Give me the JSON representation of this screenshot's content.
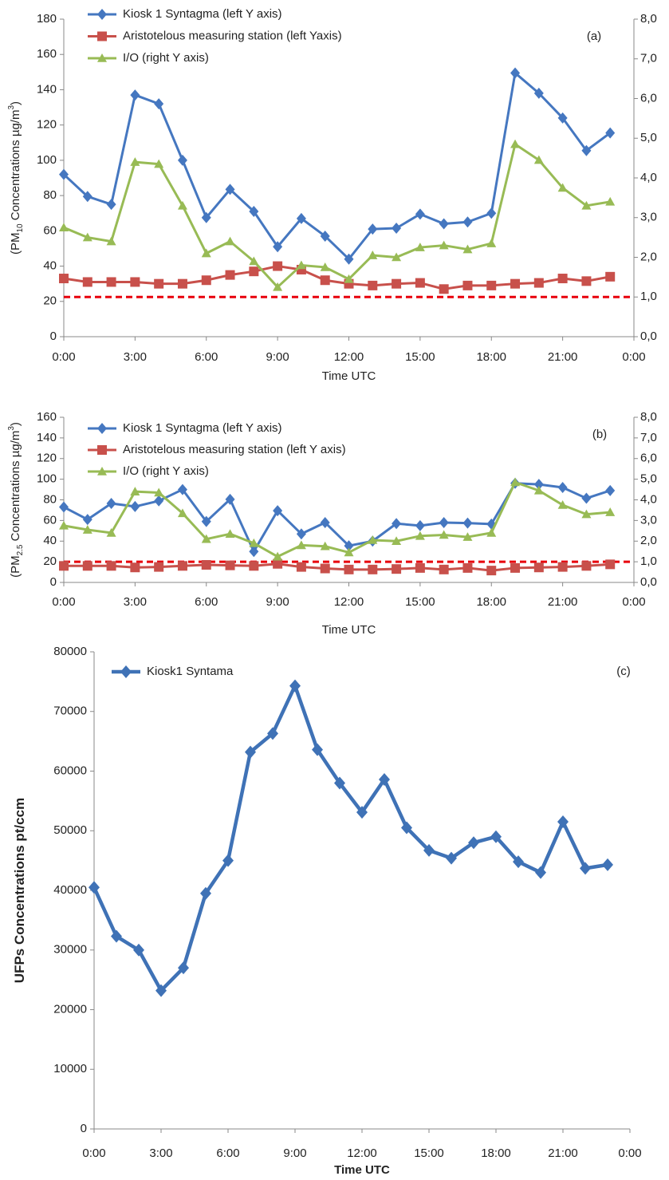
{
  "chart_data": [
    {
      "type": "line",
      "panel_label": "(a)",
      "xlabel": "Time UTC",
      "ylabel": [
        "(PM",
        "10",
        " Concentrations µg/m",
        "3",
        ")"
      ],
      "x": [
        0,
        1,
        2,
        3,
        4,
        5,
        6,
        7,
        8,
        9,
        10,
        11,
        12,
        13,
        14,
        15,
        16,
        17,
        18,
        19,
        20,
        21,
        22,
        23
      ],
      "xlim": [
        0,
        24
      ],
      "xticks": [
        {
          "value": 0,
          "label": "0:00"
        },
        {
          "value": 3,
          "label": "3:00"
        },
        {
          "value": 6,
          "label": "6:00"
        },
        {
          "value": 9,
          "label": "9:00"
        },
        {
          "value": 12,
          "label": "12:00"
        },
        {
          "value": 15,
          "label": "15:00"
        },
        {
          "value": 18,
          "label": "18:00"
        },
        {
          "value": 21,
          "label": "21:00"
        },
        {
          "value": 24,
          "label": "0:00"
        }
      ],
      "ylim": [
        0,
        180
      ],
      "yticks": [
        0,
        20,
        40,
        60,
        80,
        100,
        120,
        140,
        160,
        180
      ],
      "y2lim": [
        0,
        8
      ],
      "y2ticks": [
        {
          "value": 0,
          "label": "0,0"
        },
        {
          "value": 1,
          "label": "1,0"
        },
        {
          "value": 2,
          "label": "2,0"
        },
        {
          "value": 3,
          "label": "3,0"
        },
        {
          "value": 4,
          "label": "4,0"
        },
        {
          "value": 5,
          "label": "5,0"
        },
        {
          "value": 6,
          "label": "6,0"
        },
        {
          "value": 7,
          "label": "7,0"
        },
        {
          "value": 8,
          "label": "8,0"
        }
      ],
      "reference_line": {
        "axis": "y2",
        "value": 1,
        "color": "#e8000b"
      },
      "series": [
        {
          "name": "Kiosk 1 Syntagma (left Y axis)",
          "color": "#4577c0",
          "marker": "diamond",
          "values": [
            92,
            79.5,
            75,
            137,
            132,
            100,
            67.5,
            83.5,
            71,
            51,
            67,
            57,
            44,
            61,
            61.5,
            69.5,
            64,
            65,
            70,
            149.5,
            138,
            124,
            105.5,
            115.5
          ]
        },
        {
          "name": "Aristotelous measuring station (left Yaxis)",
          "color": "#c8504b",
          "marker": "square",
          "values": [
            33,
            31,
            31,
            31,
            30,
            30,
            32,
            35,
            37,
            40,
            38,
            32,
            30,
            29,
            30,
            30.5,
            27,
            29,
            29,
            30,
            30.5,
            33,
            31.5,
            34
          ]
        },
        {
          "name": "I/O (right Y axis)",
          "color": "#98bb55",
          "marker": "triangle",
          "axis": "y2",
          "values": [
            2.75,
            2.5,
            2.4,
            4.4,
            4.35,
            3.3,
            2.1,
            2.4,
            1.9,
            1.25,
            1.8,
            1.75,
            1.45,
            2.05,
            2.0,
            2.25,
            2.3,
            2.2,
            2.35,
            4.85,
            4.45,
            3.75,
            3.3,
            3.4
          ]
        }
      ]
    },
    {
      "type": "line",
      "panel_label": "(b)",
      "xlabel": "Time UTC",
      "ylabel": [
        "(PM",
        "2.5",
        " Concentrations µg/m",
        "3",
        ")"
      ],
      "x": [
        0,
        1,
        2,
        3,
        4,
        5,
        6,
        7,
        8,
        9,
        10,
        11,
        12,
        13,
        14,
        15,
        16,
        17,
        18,
        19,
        20,
        21,
        22,
        23
      ],
      "xlim": [
        0,
        24
      ],
      "xticks": [
        {
          "value": 0,
          "label": "0:00"
        },
        {
          "value": 3,
          "label": "3:00"
        },
        {
          "value": 6,
          "label": "6:00"
        },
        {
          "value": 9,
          "label": "9:00"
        },
        {
          "value": 12,
          "label": "12:00"
        },
        {
          "value": 15,
          "label": "15:00"
        },
        {
          "value": 18,
          "label": "18:00"
        },
        {
          "value": 21,
          "label": "21:00"
        },
        {
          "value": 24,
          "label": "0:00"
        }
      ],
      "ylim": [
        0,
        160
      ],
      "yticks": [
        0,
        20,
        40,
        60,
        80,
        100,
        120,
        140,
        160
      ],
      "y2lim": [
        0,
        8
      ],
      "y2ticks": [
        {
          "value": 0,
          "label": "0,0"
        },
        {
          "value": 1,
          "label": "1,0"
        },
        {
          "value": 2,
          "label": "2,0"
        },
        {
          "value": 3,
          "label": "3,0"
        },
        {
          "value": 4,
          "label": "4,0"
        },
        {
          "value": 5,
          "label": "5,0"
        },
        {
          "value": 6,
          "label": "6,0"
        },
        {
          "value": 7,
          "label": "7,0"
        },
        {
          "value": 8,
          "label": "8,0"
        }
      ],
      "reference_line": {
        "axis": "y2",
        "value": 1,
        "color": "#e8000b"
      },
      "series": [
        {
          "name": "Kiosk 1 Syntagma (left Y axis)",
          "color": "#4577c0",
          "marker": "diamond",
          "values": [
            73,
            61,
            76.5,
            73.5,
            79,
            90,
            59,
            80.5,
            30,
            69.5,
            47,
            58,
            35.5,
            40,
            57,
            55,
            58,
            57.5,
            56.5,
            96,
            95,
            92,
            81.5,
            89
          ]
        },
        {
          "name": "Aristotelous measuring station (left Y axis)",
          "color": "#c8504b",
          "marker": "square",
          "values": [
            16,
            16,
            16,
            14.5,
            15,
            16,
            17,
            16.5,
            16,
            18,
            15,
            13.5,
            12.5,
            12.5,
            13,
            14,
            12.5,
            14,
            11.5,
            14,
            14.5,
            15,
            16,
            17.5
          ]
        },
        {
          "name": "I/O (right Y axis)",
          "color": "#98bb55",
          "marker": "triangle",
          "axis": "y2",
          "values": [
            2.75,
            2.55,
            2.4,
            4.4,
            4.35,
            3.35,
            2.1,
            2.35,
            1.9,
            1.25,
            1.8,
            1.75,
            1.45,
            2.05,
            2.0,
            2.25,
            2.3,
            2.2,
            2.4,
            4.85,
            4.45,
            3.75,
            3.3,
            3.4
          ]
        }
      ]
    },
    {
      "type": "line",
      "panel_label": "(c)",
      "xlabel": "Time UTC",
      "ylabel": [
        "UFPs  Concentrations pt/ccm"
      ],
      "x": [
        0,
        1,
        2,
        3,
        4,
        5,
        6,
        7,
        8,
        9,
        10,
        11,
        12,
        13,
        14,
        15,
        16,
        17,
        18,
        19,
        20,
        21,
        22,
        23
      ],
      "xlim": [
        0,
        24
      ],
      "xticks": [
        {
          "value": 0,
          "label": "0:00"
        },
        {
          "value": 3,
          "label": "3:00"
        },
        {
          "value": 6,
          "label": "6:00"
        },
        {
          "value": 9,
          "label": "9:00"
        },
        {
          "value": 12,
          "label": "12:00"
        },
        {
          "value": 15,
          "label": "15:00"
        },
        {
          "value": 18,
          "label": "18:00"
        },
        {
          "value": 21,
          "label": "21:00"
        },
        {
          "value": 24,
          "label": "0:00"
        }
      ],
      "ylim": [
        0,
        80000
      ],
      "yticks": [
        0,
        10000,
        20000,
        30000,
        40000,
        50000,
        60000,
        70000,
        80000
      ],
      "series": [
        {
          "name": "Kiosk1 Syntama",
          "color": "#3f72b6",
          "marker": "diamond",
          "values": [
            40500,
            32300,
            30000,
            23200,
            27000,
            39500,
            45000,
            63200,
            66300,
            74300,
            63600,
            58000,
            53100,
            58600,
            50500,
            46700,
            45400,
            48000,
            49000,
            44800,
            43000,
            51500,
            43700,
            44300
          ]
        }
      ]
    }
  ]
}
